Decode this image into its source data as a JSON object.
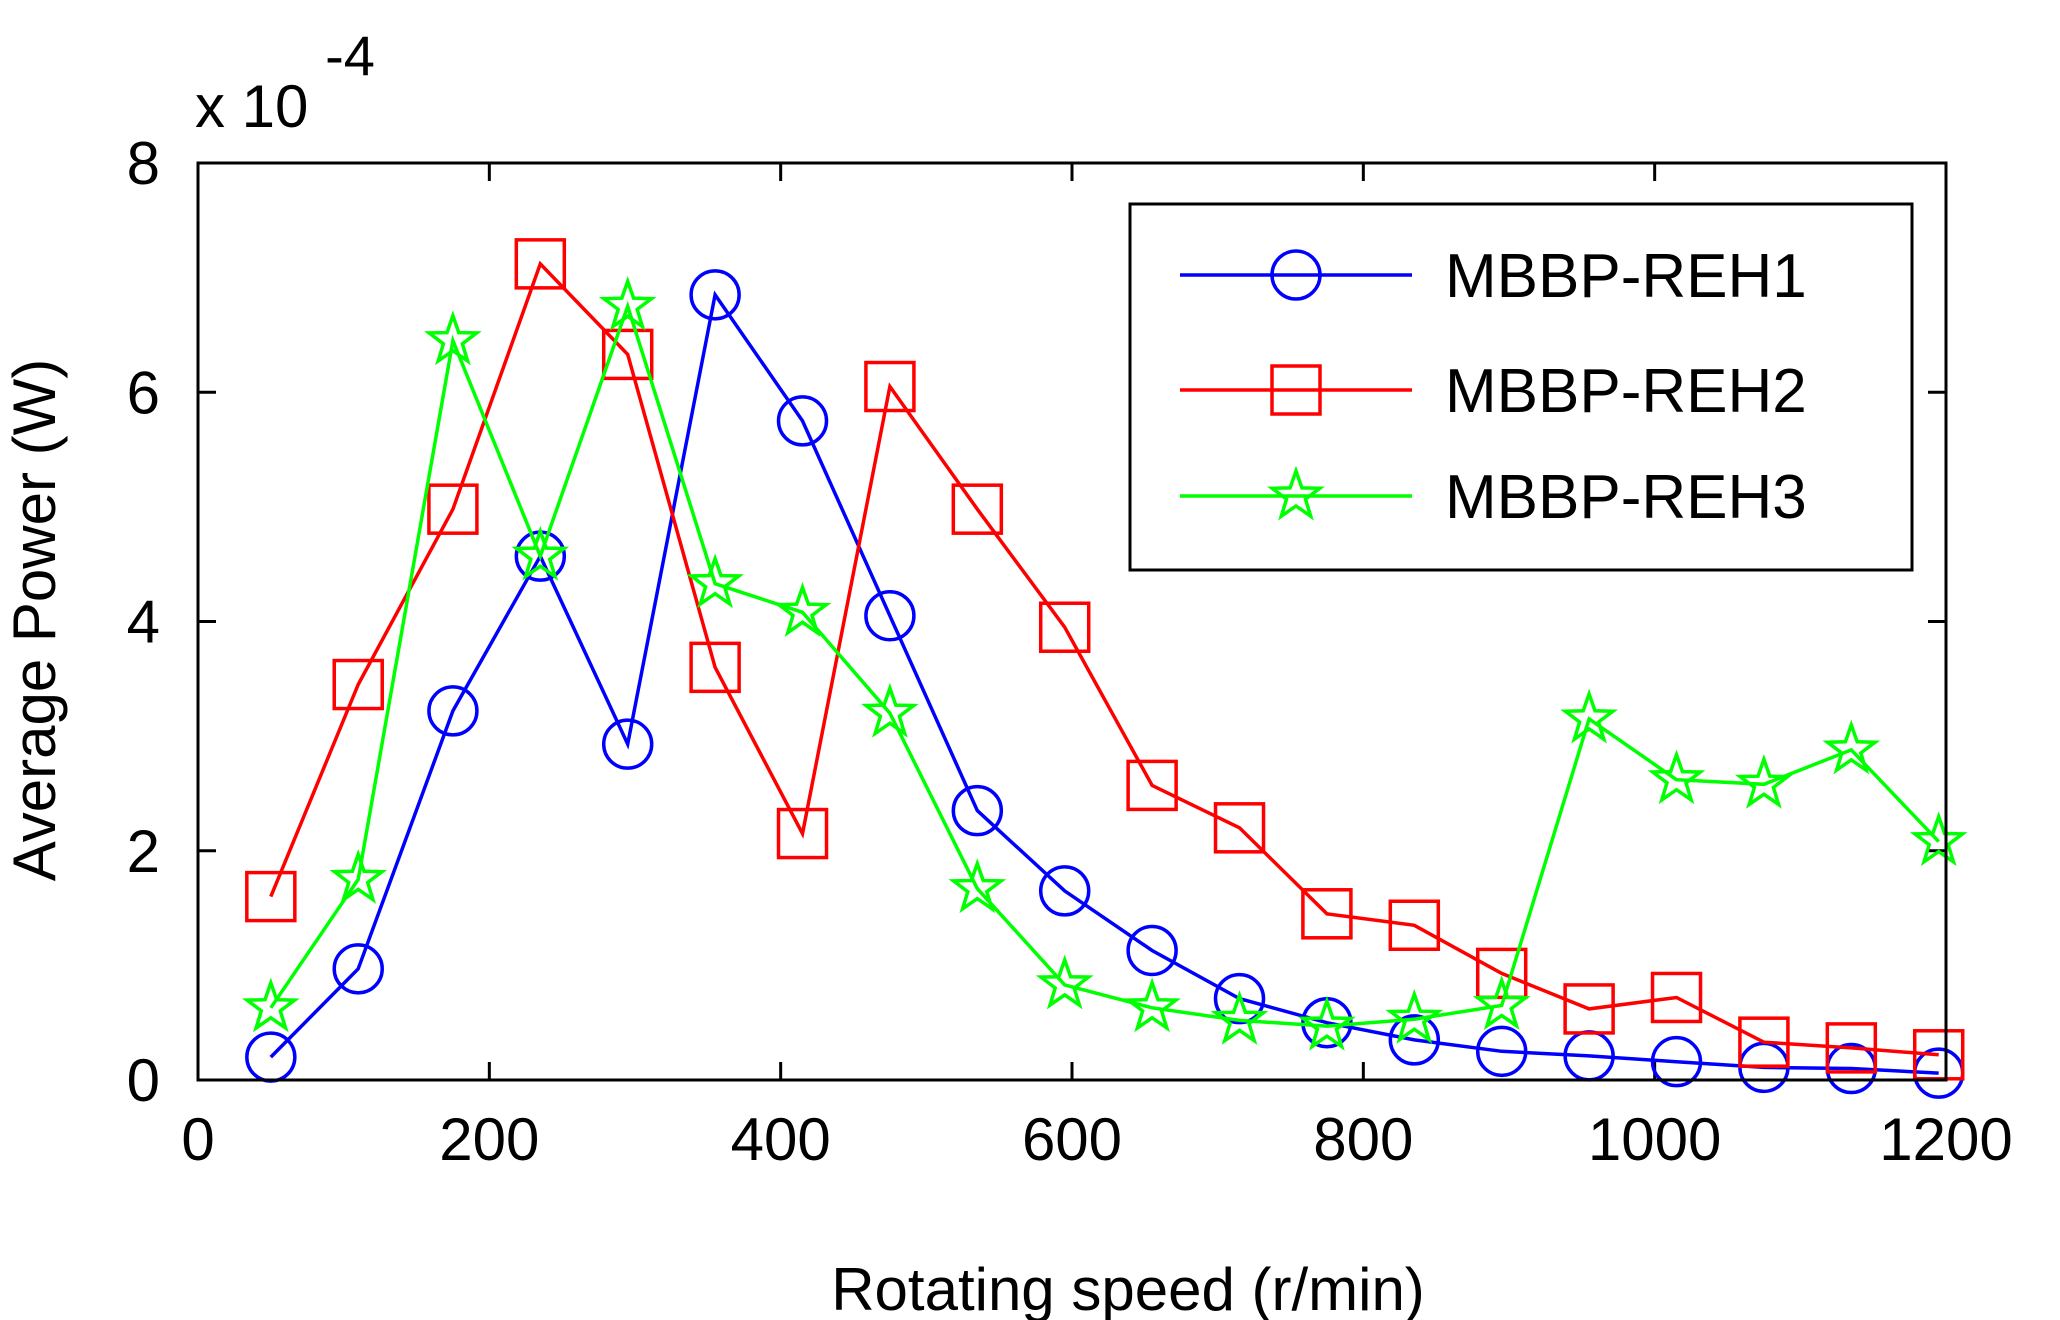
{
  "chart_data": {
    "type": "line",
    "title": "",
    "xlabel": "Rotating speed (r/min)",
    "ylabel": "Average Power (W)",
    "y_multiplier": {
      "base": "x 10",
      "exponent": "-4"
    },
    "xlim": [
      0,
      1200
    ],
    "ylim": [
      0,
      8
    ],
    "xticks": [
      0,
      200,
      400,
      600,
      800,
      1000,
      1200
    ],
    "yticks": [
      0,
      2,
      4,
      6,
      8
    ],
    "grid": false,
    "legend_position": "top-right",
    "x": [
      50,
      110,
      175,
      235,
      295,
      355,
      415,
      475,
      535,
      595,
      655,
      715,
      775,
      835,
      895,
      955,
      1015,
      1075,
      1135,
      1195
    ],
    "series": [
      {
        "name": "MBBP-REH1",
        "color": "#0000ff",
        "marker": "circle",
        "values": [
          0.2,
          0.97,
          3.22,
          4.57,
          2.93,
          6.85,
          5.75,
          4.05,
          2.35,
          1.65,
          1.13,
          0.71,
          0.5,
          0.35,
          0.25,
          0.21,
          0.16,
          0.11,
          0.1,
          0.06
        ]
      },
      {
        "name": "MBBP-REH2",
        "color": "#ff0000",
        "marker": "square",
        "values": [
          1.6,
          3.45,
          4.98,
          7.12,
          6.33,
          3.6,
          2.15,
          6.05,
          4.98,
          3.95,
          2.57,
          2.2,
          1.45,
          1.35,
          0.93,
          0.62,
          0.72,
          0.33,
          0.28,
          0.22
        ]
      },
      {
        "name": "MBBP-REH3",
        "color": "#00ff00",
        "marker": "star",
        "values": [
          0.63,
          1.75,
          6.45,
          4.57,
          6.75,
          4.33,
          4.08,
          3.2,
          1.67,
          0.83,
          0.63,
          0.52,
          0.47,
          0.53,
          0.65,
          3.15,
          2.62,
          2.58,
          2.88,
          2.08
        ]
      }
    ]
  }
}
